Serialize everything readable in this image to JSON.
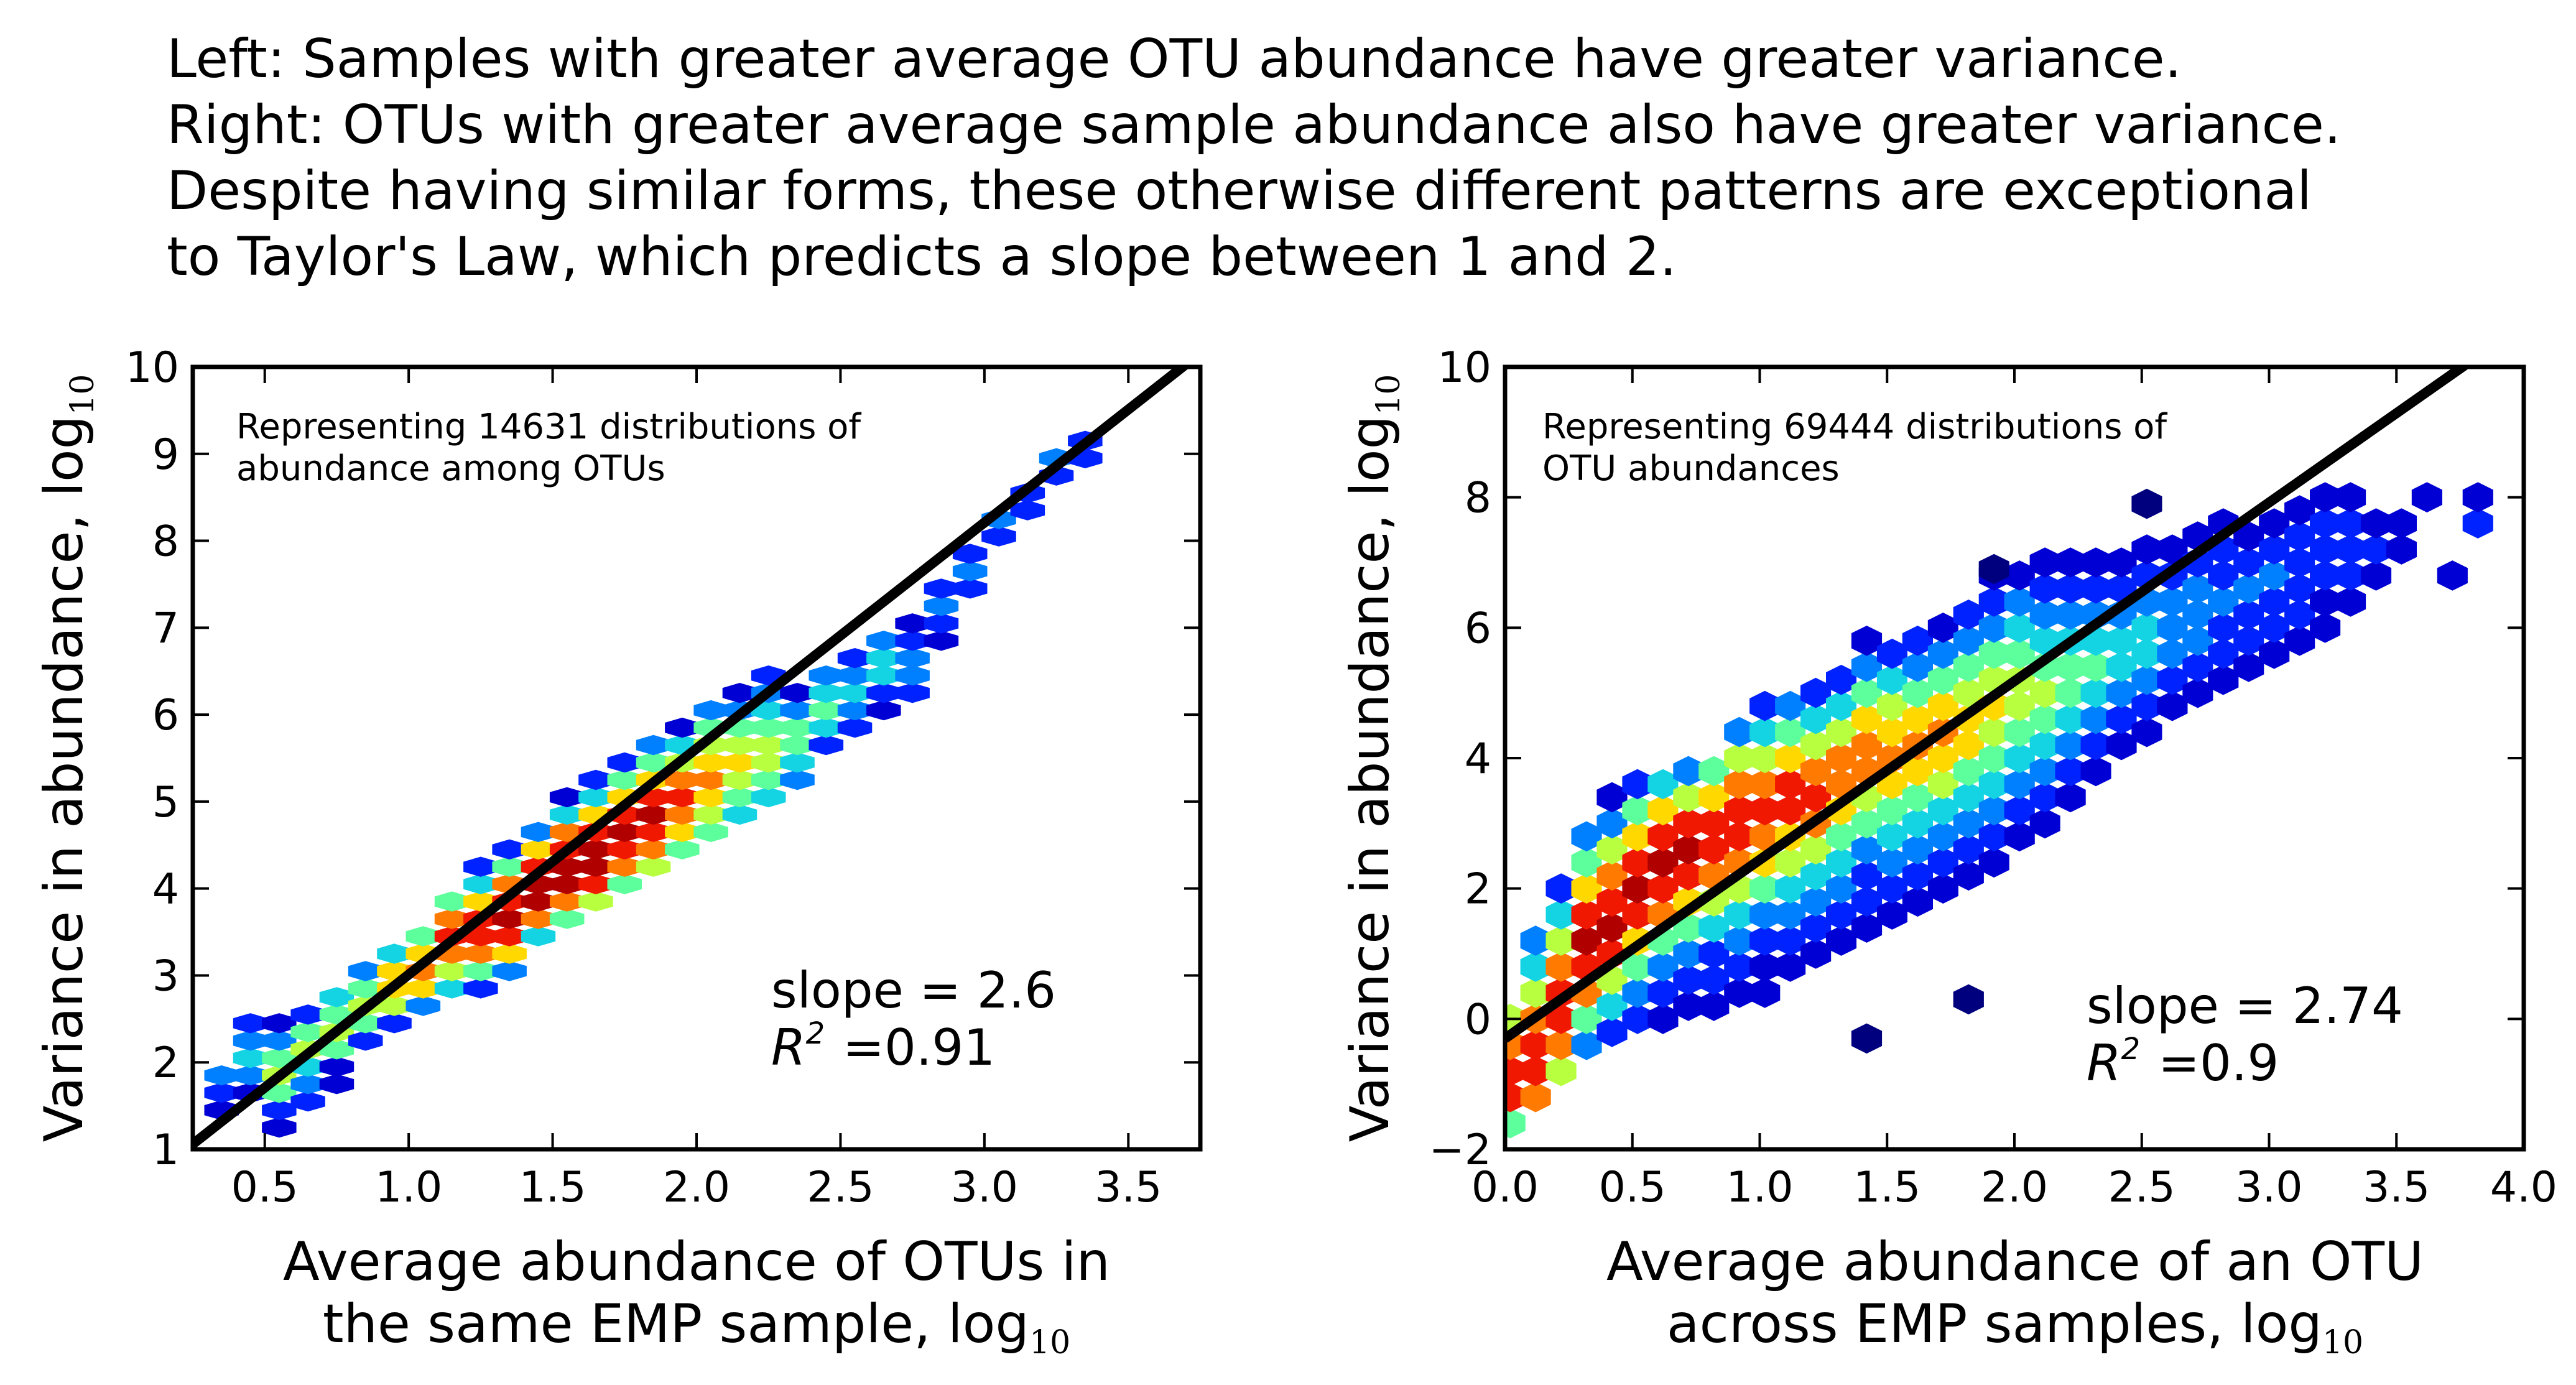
{
  "caption": [
    "Left: Samples with greater average OTU abundance have greater variance.",
    "Right: OTUs with greater average sample abundance also have greater variance.",
    "Despite having similar forms, these otherwise different patterns are exceptional",
    "to Taylor's Law, which predicts a slope between 1 and 2."
  ],
  "chart_data": [
    {
      "type": "hexbin",
      "colormap": "jet",
      "xlabel_line1": "Average abundance of OTUs in",
      "xlabel_line2": "the same EMP sample, log",
      "xlabel_sub": "10",
      "ylabel": "Variance in abundance, log",
      "ylabel_sub": "10",
      "annotation_line1": "Representing 14631 distributions of",
      "annotation_line2": "abundance among OTUs",
      "slope_label": "slope = 2.6",
      "r2_label": "=0.91",
      "xlim": [
        0.25,
        3.75
      ],
      "ylim": [
        1,
        10
      ],
      "xticks": [
        "0.5",
        "1.0",
        "1.5",
        "2.0",
        "2.5",
        "3.0",
        "3.5"
      ],
      "yticks": [
        "1",
        "2",
        "3",
        "4",
        "5",
        "6",
        "7",
        "8",
        "9",
        "10"
      ],
      "fit_line": {
        "slope": 2.6,
        "intercept": 0.41
      },
      "hex_cols": [
        [
          0.35,
          1.45,
          1.75,
          1,
          2,
          3
        ],
        [
          0.45,
          1.65,
          3.25,
          1,
          3,
          4,
          3,
          2
        ],
        [
          0.55,
          1.25,
          3.35,
          1,
          2,
          5,
          6,
          5,
          3,
          1
        ],
        [
          0.65,
          1.55,
          3.55,
          2,
          3,
          4,
          6,
          5,
          2
        ],
        [
          0.75,
          1.75,
          3.95,
          1,
          1,
          5,
          6,
          5,
          4
        ],
        [
          0.85,
          2.25,
          4.25,
          2,
          5,
          6,
          5,
          3
        ],
        [
          0.95,
          2.45,
          4.45,
          2,
          6,
          7,
          7,
          4
        ],
        [
          1.05,
          2.65,
          4.65,
          3,
          7,
          8,
          7,
          5
        ],
        [
          1.15,
          2.85,
          5.05,
          4,
          6,
          8,
          9,
          8,
          5
        ],
        [
          1.25,
          2.85,
          5.45,
          2,
          5,
          8,
          9,
          9,
          7,
          4,
          2
        ],
        [
          1.35,
          3.05,
          5.75,
          3,
          7,
          9,
          10,
          9,
          8,
          5,
          2
        ],
        [
          1.45,
          3.45,
          5.95,
          4,
          8,
          10,
          10,
          9,
          7,
          3
        ],
        [
          1.55,
          3.65,
          6.35,
          5,
          8,
          10,
          10,
          9,
          8,
          4,
          1
        ],
        [
          1.65,
          3.85,
          6.55,
          6,
          9,
          10,
          10,
          9,
          7,
          4,
          2
        ],
        [
          1.75,
          4.05,
          6.75,
          5,
          8,
          9,
          10,
          9,
          7,
          5,
          2
        ],
        [
          1.85,
          4.25,
          7.15,
          6,
          8,
          9,
          10,
          9,
          7,
          5,
          3
        ],
        [
          1.95,
          4.45,
          7.35,
          5,
          7,
          8,
          9,
          8,
          6,
          4,
          1
        ],
        [
          2.05,
          4.65,
          7.55,
          5,
          6,
          7,
          8,
          7,
          6,
          5,
          3
        ],
        [
          2.15,
          4.85,
          7.75,
          4,
          5,
          6,
          7,
          6,
          5,
          3,
          1
        ],
        [
          2.25,
          5.05,
          7.95,
          4,
          5,
          6,
          6,
          5,
          4,
          3,
          2
        ],
        [
          2.35,
          5.25,
          7.65,
          3,
          4,
          5,
          5,
          3,
          1
        ],
        [
          2.45,
          5.65,
          7.85,
          2,
          4,
          5,
          4,
          3
        ],
        [
          2.55,
          5.85,
          8.05,
          2,
          3,
          4,
          3,
          2
        ],
        [
          2.65,
          6.05,
          8.25,
          1,
          2,
          4,
          4,
          3
        ],
        [
          2.75,
          6.25,
          8.45,
          2,
          3,
          3,
          2,
          1
        ],
        [
          2.85,
          6.85,
          8.35,
          1,
          2,
          3,
          2
        ],
        [
          2.95,
          7.45,
          8.45,
          2,
          3,
          2
        ],
        [
          3.05,
          8.05,
          8.55,
          2,
          3
        ],
        [
          3.15,
          8.35,
          8.85,
          2,
          2
        ],
        [
          3.25,
          8.75,
          9.05,
          2,
          3
        ],
        [
          3.35,
          8.95,
          9.15,
          2,
          2
        ]
      ]
    },
    {
      "type": "hexbin",
      "colormap": "jet",
      "xlabel_line1": "Average abundance of an OTU",
      "xlabel_line2": "across EMP samples, log",
      "xlabel_sub": "10",
      "ylabel": "Variance in abundance, log",
      "ylabel_sub": "10",
      "annotation_line1": "Representing 69444 distributions of",
      "annotation_line2": "OTU abundances",
      "slope_label": "slope = 2.74",
      "r2_label": "=0.9",
      "xlim": [
        0,
        4
      ],
      "ylim": [
        -2,
        10
      ],
      "xticks": [
        "0.0",
        "0.5",
        "1.0",
        "1.5",
        "2.0",
        "2.5",
        "3.0",
        "3.5",
        "4.0"
      ],
      "yticks": [
        "−2",
        "0",
        "2",
        "4",
        "6",
        "8",
        "10"
      ],
      "fit_line": {
        "slope": 2.74,
        "intercept": -0.3
      },
      "hex_cols": [
        [
          0.02,
          -1.6,
          0.4,
          5,
          9,
          9,
          8,
          6
        ],
        [
          0.12,
          -1.2,
          1.0,
          8,
          9,
          9,
          8,
          6,
          4,
          3
        ],
        [
          0.22,
          -0.8,
          1.8,
          6,
          8,
          9,
          9,
          8,
          6,
          4,
          2
        ],
        [
          0.32,
          -0.4,
          2.4,
          3,
          5,
          8,
          9,
          10,
          9,
          7,
          5,
          3
        ],
        [
          0.42,
          -0.2,
          2.8,
          2,
          4,
          6,
          9,
          10,
          9,
          8,
          6,
          3,
          1
        ],
        [
          0.52,
          0.0,
          3.0,
          2,
          3,
          5,
          7,
          9,
          10,
          9,
          7,
          5,
          2
        ],
        [
          0.62,
          0.0,
          3.4,
          1,
          2,
          3,
          5,
          8,
          9,
          10,
          9,
          7,
          4
        ],
        [
          0.72,
          0.2,
          3.6,
          1,
          2,
          3,
          5,
          7,
          9,
          10,
          9,
          6,
          3
        ],
        [
          0.82,
          0.2,
          3.8,
          1,
          2,
          2,
          4,
          6,
          8,
          9,
          9,
          7,
          5
        ],
        [
          0.92,
          0.4,
          4.2,
          1,
          2,
          3,
          4,
          6,
          8,
          9,
          9,
          8,
          6,
          3
        ],
        [
          1.02,
          0.4,
          4.6,
          1,
          1,
          2,
          3,
          5,
          7,
          8,
          9,
          8,
          6,
          4,
          2
        ],
        [
          1.12,
          0.8,
          4.8,
          1,
          2,
          3,
          4,
          6,
          7,
          9,
          9,
          7,
          5,
          3
        ],
        [
          1.22,
          1.0,
          5.0,
          1,
          2,
          3,
          4,
          6,
          8,
          9,
          8,
          6,
          4,
          2
        ],
        [
          1.32,
          1.2,
          5.2,
          1,
          2,
          3,
          4,
          5,
          7,
          8,
          8,
          6,
          4,
          2
        ],
        [
          1.42,
          1.4,
          5.6,
          1,
          2,
          2,
          3,
          5,
          6,
          8,
          8,
          7,
          5,
          3,
          1
        ],
        [
          1.52,
          1.6,
          5.8,
          1,
          2,
          3,
          4,
          5,
          7,
          8,
          7,
          6,
          4,
          2
        ],
        [
          1.62,
          1.8,
          6.0,
          1,
          2,
          3,
          4,
          5,
          7,
          8,
          7,
          5,
          3,
          2
        ],
        [
          1.72,
          2.0,
          6.2,
          1,
          2,
          3,
          4,
          6,
          7,
          8,
          7,
          5,
          3,
          1
        ],
        [
          1.82,
          2.2,
          6.4,
          1,
          2,
          3,
          4,
          5,
          7,
          7,
          6,
          5,
          3,
          2
        ],
        [
          1.92,
          2.4,
          6.8,
          1,
          2,
          3,
          4,
          5,
          6,
          7,
          6,
          5,
          3,
          2,
          1
        ],
        [
          2.02,
          2.8,
          7.0,
          1,
          2,
          3,
          4,
          5,
          6,
          6,
          5,
          4,
          3,
          1
        ],
        [
          2.12,
          3.0,
          7.2,
          1,
          2,
          3,
          4,
          5,
          6,
          5,
          4,
          3,
          2,
          1
        ],
        [
          2.22,
          3.4,
          7.4,
          1,
          2,
          3,
          4,
          5,
          5,
          4,
          3,
          2,
          1
        ],
        [
          2.32,
          3.8,
          7.6,
          1,
          2,
          3,
          4,
          5,
          4,
          3,
          2,
          1
        ],
        [
          2.42,
          4.2,
          7.8,
          1,
          2,
          3,
          4,
          4,
          3,
          2,
          1
        ],
        [
          2.52,
          4.4,
          8.0,
          1,
          2,
          3,
          4,
          4,
          3,
          2,
          1
        ],
        [
          2.62,
          4.8,
          7.8,
          1,
          2,
          3,
          3,
          3,
          2,
          1
        ],
        [
          2.72,
          5.0,
          8.0,
          1,
          2,
          3,
          3,
          3,
          2,
          1
        ],
        [
          2.82,
          5.2,
          8.2,
          1,
          2,
          2,
          3,
          2,
          2,
          1
        ],
        [
          2.92,
          5.4,
          8.2,
          1,
          2,
          2,
          3,
          2,
          1
        ],
        [
          3.02,
          5.6,
          8.4,
          1,
          2,
          2,
          3,
          2,
          1
        ],
        [
          3.12,
          5.8,
          8.4,
          1,
          2,
          2,
          2,
          2,
          1
        ],
        [
          3.22,
          6.0,
          8.4,
          1,
          1,
          2,
          2,
          2,
          1
        ],
        [
          3.32,
          6.4,
          8.8,
          1,
          2,
          2,
          2,
          1
        ],
        [
          3.42,
          6.8,
          8.2,
          1,
          2,
          1
        ],
        [
          3.52,
          7.2,
          8.4,
          1,
          1
        ],
        [
          3.62,
          8.0,
          8.4,
          1
        ],
        [
          3.72,
          6.8,
          6.8,
          1
        ],
        [
          3.82,
          7.6,
          8.8,
          2,
          1
        ]
      ],
      "outliers": [
        [
          1.82,
          0.3,
          1
        ],
        [
          1.42,
          -0.3,
          1
        ],
        [
          2.52,
          7.9,
          1
        ],
        [
          1.92,
          6.9,
          1
        ]
      ]
    }
  ]
}
